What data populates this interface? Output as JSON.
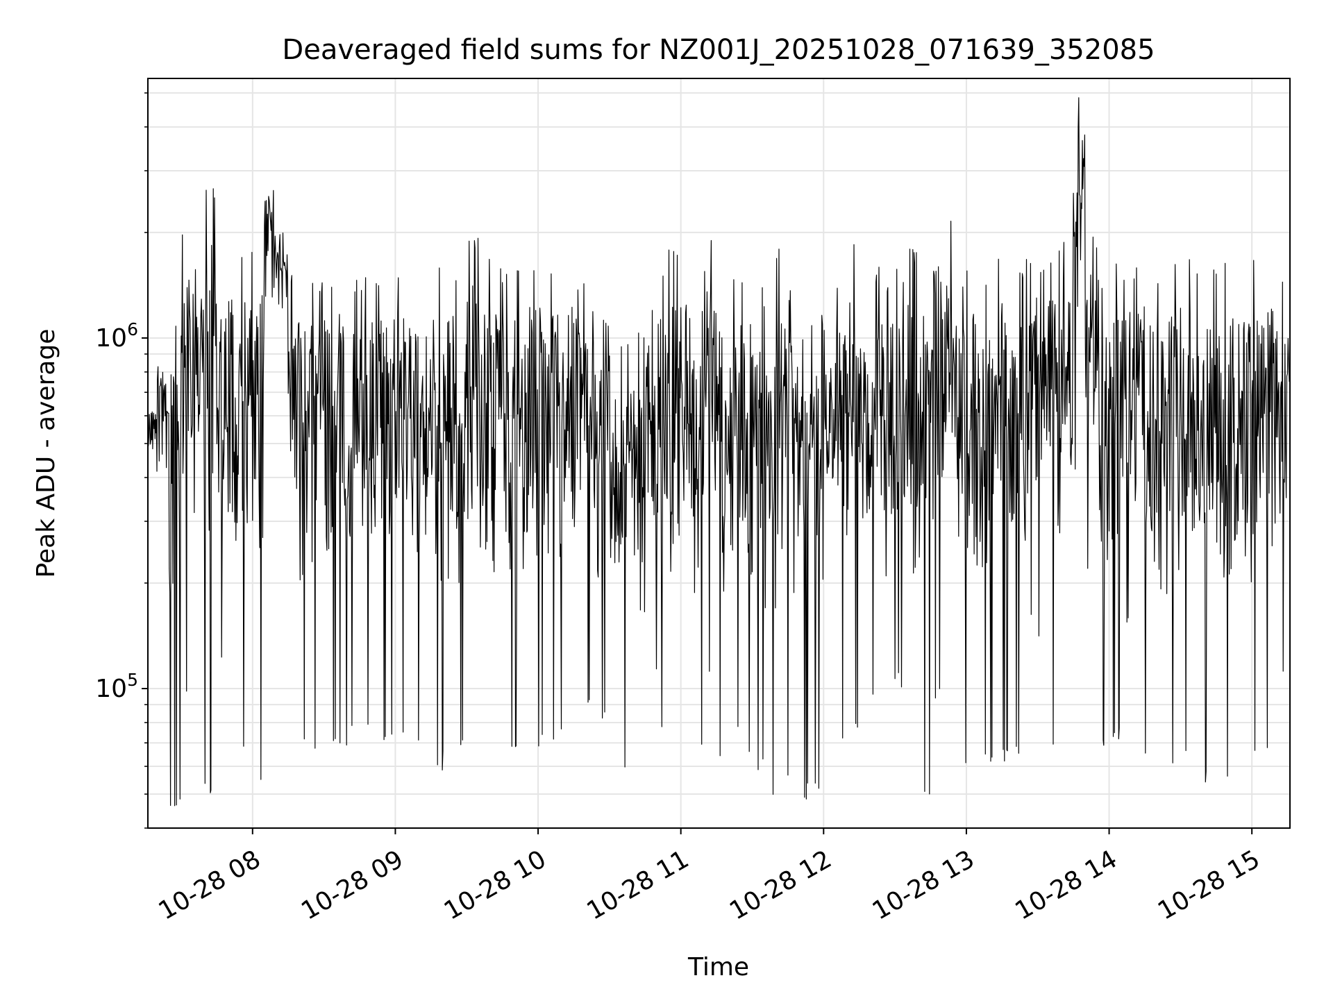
{
  "chart_data": {
    "type": "line",
    "title": "Deaveraged field sums for NZ001J_20251028_071639_352085",
    "xlabel": "Time",
    "ylabel": "Peak ADU - average",
    "x_scale": "time",
    "y_scale": "log",
    "xlim": [
      "2025-10-28 07:16",
      "2025-10-28 15:16"
    ],
    "ylim": [
      40000,
      5500000
    ],
    "x_ticks": [
      {
        "value": "2025-10-28 08:00",
        "label": "10-28 08"
      },
      {
        "value": "2025-10-28 09:00",
        "label": "10-28 09"
      },
      {
        "value": "2025-10-28 10:00",
        "label": "10-28 10"
      },
      {
        "value": "2025-10-28 11:00",
        "label": "10-28 11"
      },
      {
        "value": "2025-10-28 12:00",
        "label": "10-28 12"
      },
      {
        "value": "2025-10-28 13:00",
        "label": "10-28 13"
      },
      {
        "value": "2025-10-28 14:00",
        "label": "10-28 14"
      },
      {
        "value": "2025-10-28 15:00",
        "label": "10-28 15"
      }
    ],
    "y_ticks": [
      {
        "value": 100000,
        "base": "10",
        "exp": "5"
      },
      {
        "value": 1000000,
        "base": "10",
        "exp": "6"
      }
    ],
    "grid": true,
    "line_color": "#000000",
    "series": [
      {
        "x": [
          "2025-10-28 07:16",
          "2025-10-28 07:20",
          "2025-10-28 07:25",
          "2025-10-28 07:30",
          "2025-10-28 07:35",
          "2025-10-28 07:40",
          "2025-10-28 07:45",
          "2025-10-28 07:50",
          "2025-10-28 07:55",
          "2025-10-28 08:00",
          "2025-10-28 08:05",
          "2025-10-28 08:10",
          "2025-10-28 08:15",
          "2025-10-28 08:20",
          "2025-10-28 08:25",
          "2025-10-28 08:30",
          "2025-10-28 08:35",
          "2025-10-28 08:40",
          "2025-10-28 08:45",
          "2025-10-28 08:50",
          "2025-10-28 08:55",
          "2025-10-28 09:00",
          "2025-10-28 09:05",
          "2025-10-28 09:10",
          "2025-10-28 09:15",
          "2025-10-28 09:20",
          "2025-10-28 09:25",
          "2025-10-28 09:30",
          "2025-10-28 09:35",
          "2025-10-28 09:40",
          "2025-10-28 09:45",
          "2025-10-28 09:50",
          "2025-10-28 09:55",
          "2025-10-28 10:00",
          "2025-10-28 10:05",
          "2025-10-28 10:10",
          "2025-10-28 10:15",
          "2025-10-28 10:20",
          "2025-10-28 10:25",
          "2025-10-28 10:30",
          "2025-10-28 10:35",
          "2025-10-28 10:40",
          "2025-10-28 10:45",
          "2025-10-28 10:50",
          "2025-10-28 10:55",
          "2025-10-28 11:00",
          "2025-10-28 11:05",
          "2025-10-28 11:10",
          "2025-10-28 11:15",
          "2025-10-28 11:20",
          "2025-10-28 11:25",
          "2025-10-28 11:30",
          "2025-10-28 11:35",
          "2025-10-28 11:40",
          "2025-10-28 11:45",
          "2025-10-28 11:50",
          "2025-10-28 11:55",
          "2025-10-28 12:00",
          "2025-10-28 12:05",
          "2025-10-28 12:10",
          "2025-10-28 12:15",
          "2025-10-28 12:20",
          "2025-10-28 12:25",
          "2025-10-28 12:30",
          "2025-10-28 12:35",
          "2025-10-28 12:40",
          "2025-10-28 12:45",
          "2025-10-28 12:50",
          "2025-10-28 12:55",
          "2025-10-28 13:00",
          "2025-10-28 13:05",
          "2025-10-28 13:10",
          "2025-10-28 13:15",
          "2025-10-28 13:20",
          "2025-10-28 13:25",
          "2025-10-28 13:30",
          "2025-10-28 13:35",
          "2025-10-28 13:40",
          "2025-10-28 13:45",
          "2025-10-28 13:50",
          "2025-10-28 13:55",
          "2025-10-28 14:00",
          "2025-10-28 14:05",
          "2025-10-28 14:10",
          "2025-10-28 14:15",
          "2025-10-28 14:20",
          "2025-10-28 14:25",
          "2025-10-28 14:30",
          "2025-10-28 14:35",
          "2025-10-28 14:40",
          "2025-10-28 14:45",
          "2025-10-28 14:50",
          "2025-10-28 14:55",
          "2025-10-28 15:00",
          "2025-10-28 15:05",
          "2025-10-28 15:10",
          "2025-10-28 15:16"
        ],
        "y_min": [
          380000,
          420000,
          45000,
          90000,
          300000,
          50000,
          110000,
          85000,
          62000,
          52000,
          1300000,
          800000,
          70000,
          65000,
          66000,
          68000,
          69000,
          70000,
          71000,
          72000,
          69000,
          68000,
          64000,
          62000,
          58000,
          60000,
          64000,
          61000,
          68000,
          62000,
          61000,
          63000,
          66000,
          67000,
          70000,
          80000,
          100000,
          90000,
          80000,
          100000,
          58000,
          58000,
          110000,
          70000,
          55000,
          50000,
          62000,
          100000,
          58000,
          70000,
          64000,
          58000,
          48000,
          55000,
          55000,
          48000,
          50000,
          110000,
          65000,
          75000,
          80000,
          90000,
          70000,
          100000,
          55000,
          50000,
          90000,
          80000,
          58000,
          60000,
          59000,
          58000,
          60000,
          62000,
          150000,
          130000,
          65000,
          190000,
          400000,
          200000,
          65000,
          70000,
          150000,
          140000,
          62000,
          52000,
          55000,
          61000,
          53000,
          52000,
          51000,
          53000,
          52000,
          60000,
          61000,
          100000,
          160000
        ],
        "y_max": [
          650000,
          850000,
          1200000,
          2100000,
          1600000,
          2800000,
          1500000,
          1300000,
          1800000,
          1900000,
          2700000,
          2200000,
          1600000,
          1550000,
          1500000,
          1550000,
          1600000,
          1500000,
          1500000,
          1550000,
          1600000,
          1650000,
          1600000,
          1550000,
          1600000,
          1700000,
          1600000,
          2000000,
          1700000,
          1650000,
          1600000,
          1600000,
          1700000,
          1700000,
          1600000,
          1300000,
          1500000,
          1300000,
          1200000,
          900000,
          1000000,
          1100000,
          1300000,
          1600000,
          1900000,
          1250000,
          1200000,
          2100000,
          1650000,
          1600000,
          1500000,
          1450000,
          1300000,
          1800000,
          1400000,
          1000000,
          1200000,
          1100000,
          1450000,
          1900000,
          1300000,
          1600000,
          1500000,
          1600000,
          1800000,
          1700000,
          2300000,
          2200000,
          1500000,
          1650000,
          1500000,
          1700000,
          1800000,
          1650000,
          1700000,
          1600000,
          1800000,
          1900000,
          5300000,
          2000000,
          1500000,
          1700000,
          1600000,
          1600000,
          1650000,
          1600000,
          1650000,
          1700000,
          1550000,
          1600000,
          1650000,
          1600000,
          1600000,
          1700000,
          1800000,
          1600000,
          1450000
        ]
      }
    ]
  }
}
